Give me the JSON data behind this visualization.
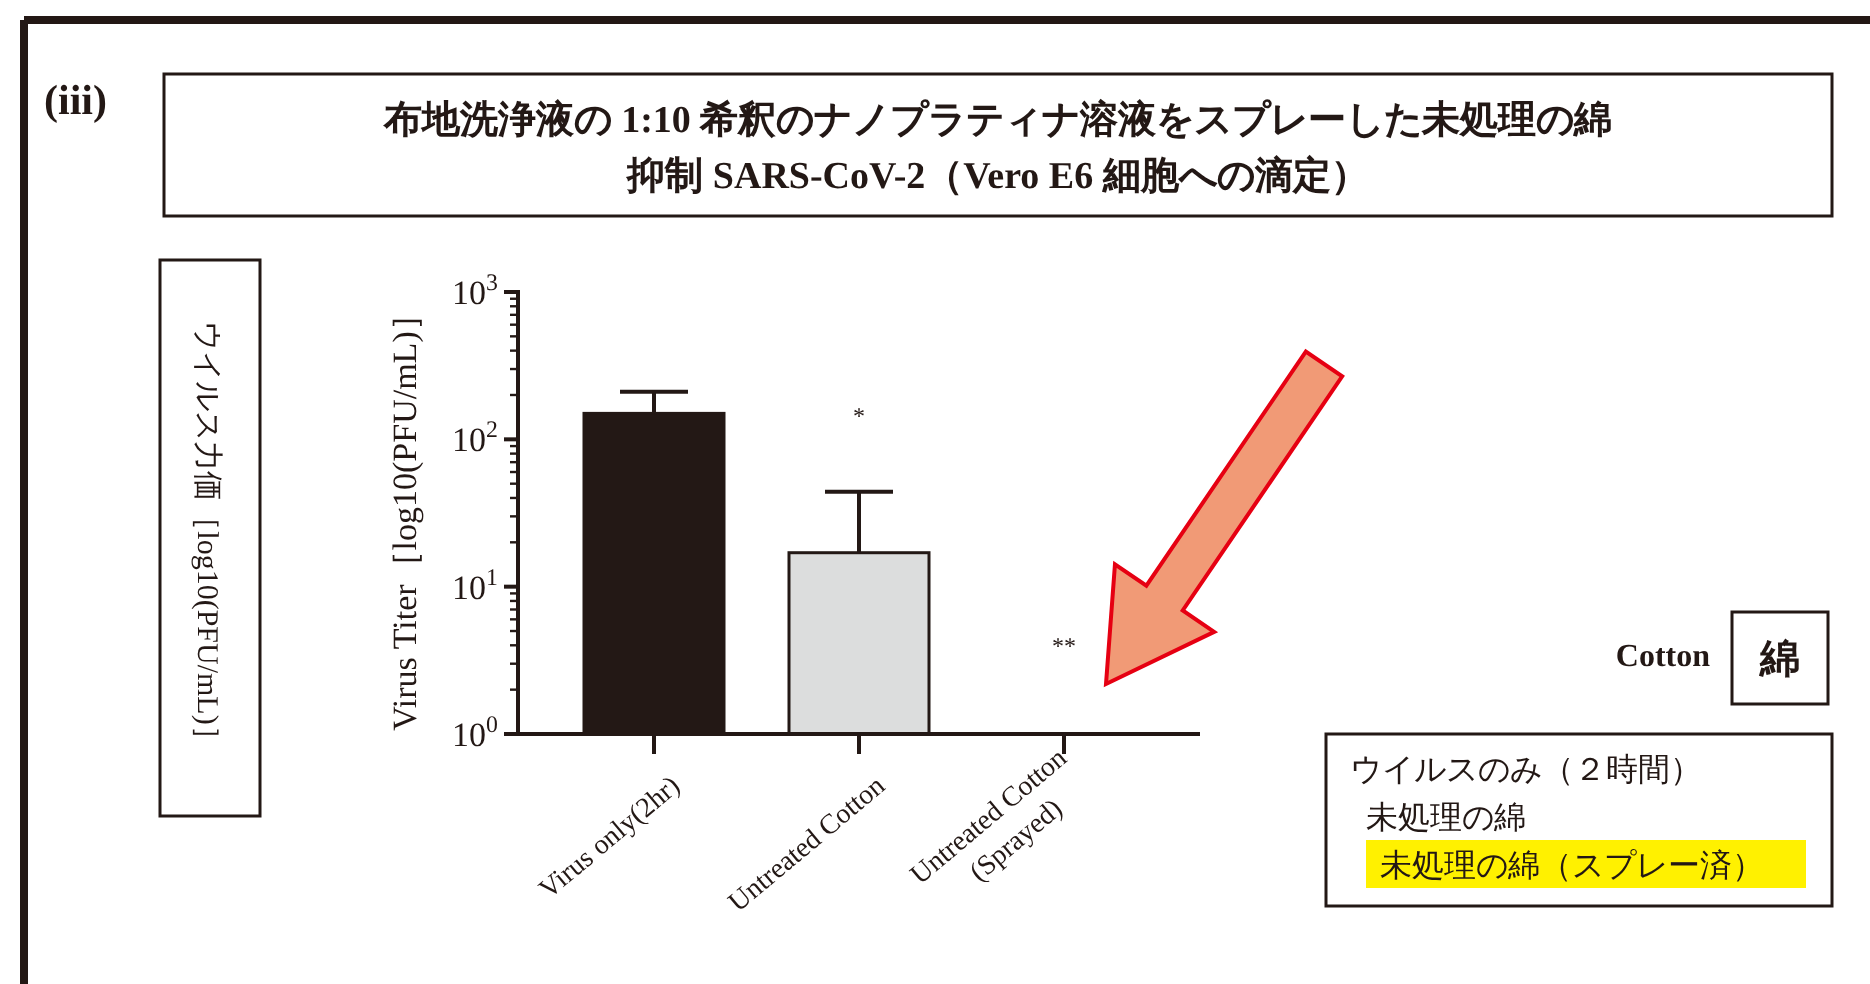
{
  "chart_data": {
    "type": "bar",
    "title": "布地洗浄液の 1:10 希釈のナノプラティナ溶液をスプレーした未処理の綿",
    "subtitle": "抑制 SARS-CoV-2（Vero E6 細胞への滴定）",
    "ylabel": "Virus Titer［log10(PFU/mL)］",
    "categories": [
      "Virus only(2hr)",
      "Untreated Cotton",
      "Untreated Cotton (Sprayed)"
    ],
    "values": [
      150,
      17,
      1
    ],
    "colors": [
      "#231815",
      "#dcdddd",
      "#ffffff"
    ],
    "errors": [
      [
        150,
        210
      ],
      [
        17,
        44
      ],
      null
    ],
    "log": true,
    "ylim": [
      1,
      1000
    ],
    "yticks": [
      {
        "value": 1,
        "label": "10$^{0}$"
      },
      {
        "value": 10,
        "label": "10$^{1}$"
      },
      {
        "value": 100,
        "label": "10$^{2}$"
      },
      {
        "value": 1000,
        "label": "10$^{3}$"
      }
    ],
    "annotations": [
      "(iii)",
      "*",
      "**",
      "ウイルス力価［log10(PFU/mL)］",
      "Cotton",
      "綿",
      "ウイルスのみ（２時間）",
      "未処理の綿",
      "未処理の綿（スプレー済）"
    ]
  }
}
